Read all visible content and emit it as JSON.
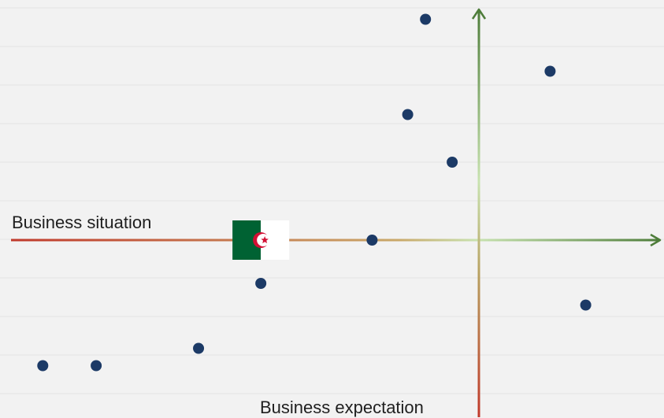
{
  "chart_data": {
    "type": "scatter",
    "xlabel": "Business situation",
    "ylabel": "Business expectation",
    "xlim": [
      -5.4,
      2.1
    ],
    "ylim": [
      -2.0,
      2.7
    ],
    "grid": true,
    "points": [
      {
        "x": -4.9,
        "y": -1.45
      },
      {
        "x": -4.3,
        "y": -1.45
      },
      {
        "x": -3.15,
        "y": -1.25
      },
      {
        "x": -2.45,
        "y": -0.5
      },
      {
        "x": -1.2,
        "y": 0.0
      },
      {
        "x": -0.8,
        "y": 1.45
      },
      {
        "x": -0.6,
        "y": 2.55
      },
      {
        "x": -0.3,
        "y": 0.9
      },
      {
        "x": 0.8,
        "y": 1.95
      },
      {
        "x": 1.2,
        "y": -0.75
      }
    ],
    "highlight": {
      "x": -2.45,
      "y": 0.0,
      "icon": "algeria-flag-icon",
      "colors": {
        "green": "#006233",
        "white": "#ffffff",
        "red": "#d21034"
      }
    },
    "colors": {
      "point": "#1c3a66",
      "axis_negative": "#c0392b",
      "axis_center": "#c8e3b0",
      "axis_positive": "#4e7d3a",
      "grid": "#e4e4e4",
      "background": "#f2f2f2"
    }
  }
}
